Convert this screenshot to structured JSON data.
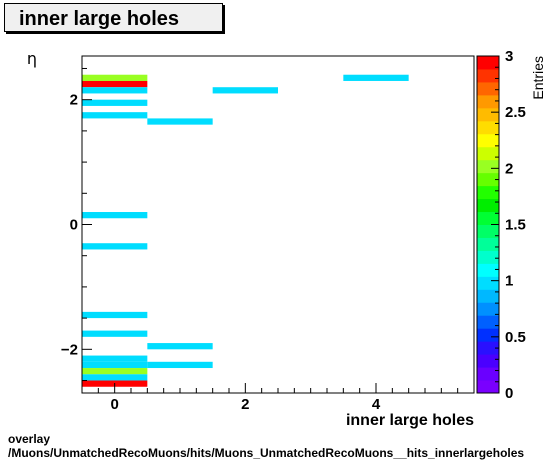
{
  "title": "inner large holes",
  "footer": {
    "line1": "overlay",
    "line2": "/Muons/UnmatchedRecoMuons/hits/Muons_UnmatchedRecoMuons__hits_innerlargeholes"
  },
  "chart_data": {
    "type": "heatmap",
    "title": "inner large holes",
    "xlabel": "inner large holes",
    "ylabel": "η",
    "zlabel": "Entries",
    "xlim": [
      -0.5,
      5.5
    ],
    "ylim": [
      -2.7,
      2.7
    ],
    "zlim": [
      0,
      3
    ],
    "x_ticks": [
      0,
      2,
      4
    ],
    "y_ticks": [
      -2,
      0,
      2
    ],
    "z_ticks": [
      "0",
      "0.5",
      "1",
      "1.5",
      "2",
      "2.5",
      "3"
    ],
    "bin_width_x": 1,
    "bin_width_y": 0.1,
    "bins": [
      {
        "x": 0,
        "y": 2.35,
        "z": 2
      },
      {
        "x": 0,
        "y": 2.25,
        "z": 3
      },
      {
        "x": 0,
        "y": 2.15,
        "z": 1
      },
      {
        "x": 0,
        "y": 1.95,
        "z": 1
      },
      {
        "x": 0,
        "y": 1.75,
        "z": 1
      },
      {
        "x": 0,
        "y": 0.15,
        "z": 1
      },
      {
        "x": 0,
        "y": -0.35,
        "z": 1
      },
      {
        "x": 0,
        "y": -1.45,
        "z": 1
      },
      {
        "x": 0,
        "y": -1.75,
        "z": 1
      },
      {
        "x": 0,
        "y": -2.15,
        "z": 1
      },
      {
        "x": 0,
        "y": -2.25,
        "z": 1
      },
      {
        "x": 0,
        "y": -2.35,
        "z": 2
      },
      {
        "x": 0,
        "y": -2.45,
        "z": 1
      },
      {
        "x": 0,
        "y": -2.55,
        "z": 3
      },
      {
        "x": 1,
        "y": 1.65,
        "z": 1
      },
      {
        "x": 1,
        "y": -1.95,
        "z": 1
      },
      {
        "x": 1,
        "y": -2.25,
        "z": 1
      },
      {
        "x": 2,
        "y": 2.15,
        "z": 1
      },
      {
        "x": 4,
        "y": 2.35,
        "z": 1
      }
    ],
    "palette": [
      "#7a00ff",
      "#6a00ff",
      "#4a00ff",
      "#2a10ff",
      "#0030ff",
      "#0060ff",
      "#0090ff",
      "#00b8ff",
      "#00ddff",
      "#00ffff",
      "#00ffcc",
      "#00ff99",
      "#00ff66",
      "#00ff33",
      "#00ee00",
      "#22ff00",
      "#66ff00",
      "#99ff22",
      "#ccff00",
      "#ffff00",
      "#ffdd00",
      "#ffbb00",
      "#ff9900",
      "#ff6600",
      "#ff3300",
      "#ff0000"
    ],
    "grid": false,
    "legend": "colorbar-right"
  }
}
